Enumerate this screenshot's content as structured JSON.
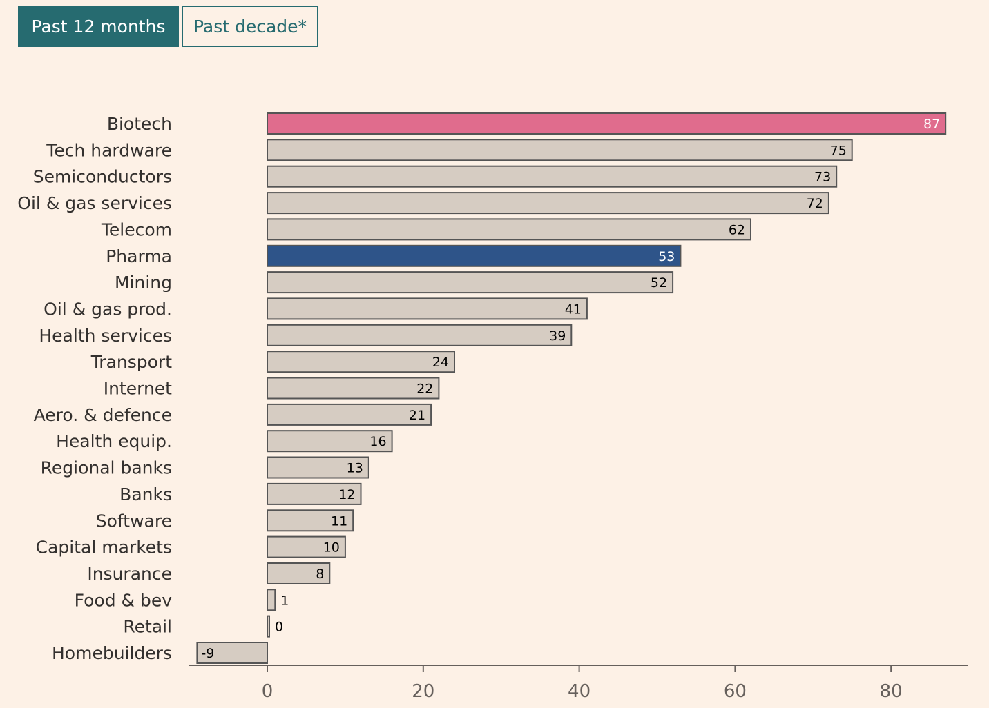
{
  "tabs": {
    "active_label": "Past 12 months",
    "inactive_label": "Past decade*"
  },
  "colors": {
    "background": "#fdf1e6",
    "tab_accent": "#266b70",
    "bar_default": "#d6ccc2",
    "bar_highlight_biotech": "#e06c8d",
    "bar_highlight_pharma": "#2e5489",
    "bar_outline": "#555555",
    "axis": "#66605c"
  },
  "chart_data": {
    "type": "bar",
    "orientation": "horizontal",
    "title": "",
    "xlabel": "",
    "ylabel": "",
    "xlim": [
      -10,
      90
    ],
    "xticks": [
      0,
      20,
      40,
      60,
      80
    ],
    "grid": false,
    "categories": [
      "Biotech",
      "Tech hardware",
      "Semiconductors",
      "Oil & gas services",
      "Telecom",
      "Pharma",
      "Mining",
      "Oil & gas prod.",
      "Health services",
      "Transport",
      "Internet",
      "Aero. & defence",
      "Health equip.",
      "Regional banks",
      "Banks",
      "Software",
      "Capital markets",
      "Insurance",
      "Food & bev",
      "Retail",
      "Homebuilders"
    ],
    "values": [
      87,
      75,
      73,
      72,
      62,
      53,
      52,
      41,
      39,
      24,
      22,
      21,
      16,
      13,
      12,
      11,
      10,
      8,
      1,
      0,
      -9
    ],
    "highlighted": {
      "Biotech": "#e06c8d",
      "Pharma": "#2e5489"
    }
  }
}
